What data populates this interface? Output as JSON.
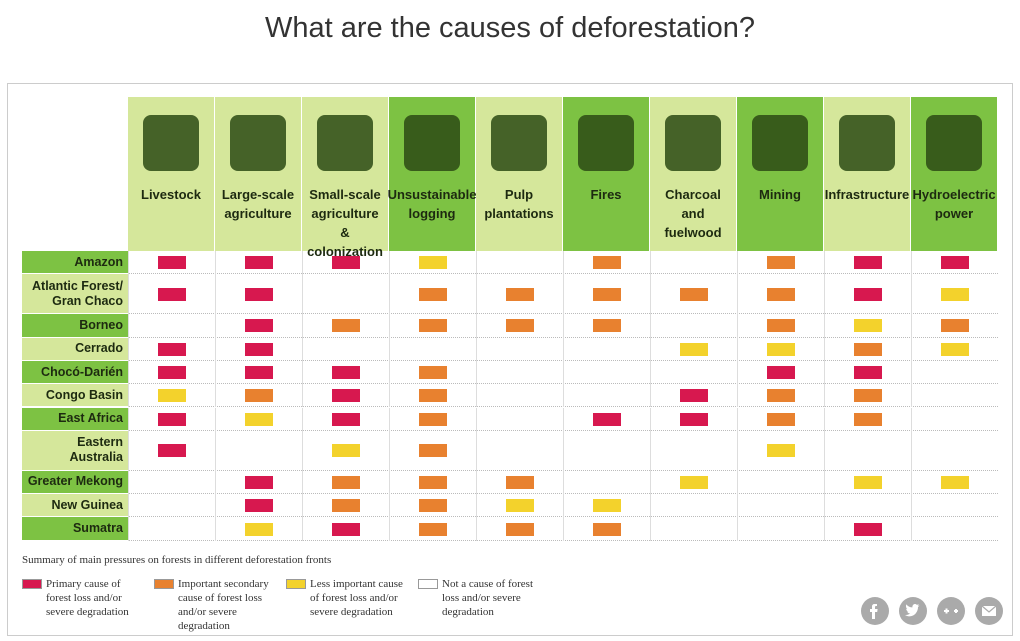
{
  "title": "What are the causes of deforestation?",
  "table": {
    "columns": [
      "Livestock",
      "Large-scale agriculture",
      "Small-scale agriculture & colonization",
      "Unsustainable logging",
      "Pulp plantations",
      "Fires",
      "Charcoal and fuelwood",
      "Mining",
      "Infrastructure",
      "Hydroelectric power"
    ],
    "column_shades": [
      "#d5e79b",
      "#d5e79b",
      "#d5e79b",
      "#7dc243",
      "#d5e79b",
      "#7dc243",
      "#d5e79b",
      "#7dc243",
      "#d5e79b",
      "#7dc243"
    ],
    "rows": [
      {
        "label": "Amazon",
        "cells": [
          0,
          0,
          0,
          2,
          3,
          1,
          3,
          1,
          0,
          0
        ]
      },
      {
        "label": "Atlantic Forest/ Gran Chaco",
        "cells": [
          0,
          0,
          3,
          1,
          1,
          1,
          1,
          1,
          0,
          2
        ]
      },
      {
        "label": "Borneo",
        "cells": [
          3,
          0,
          1,
          1,
          1,
          1,
          3,
          1,
          2,
          1
        ]
      },
      {
        "label": "Cerrado",
        "cells": [
          0,
          0,
          3,
          3,
          3,
          3,
          2,
          2,
          1,
          2
        ]
      },
      {
        "label": "Chocó-Darién",
        "cells": [
          0,
          0,
          0,
          1,
          3,
          3,
          3,
          0,
          0,
          3
        ]
      },
      {
        "label": "Congo Basin",
        "cells": [
          2,
          1,
          0,
          1,
          3,
          3,
          0,
          1,
          1,
          3
        ]
      },
      {
        "label": "East Africa",
        "cells": [
          0,
          2,
          0,
          1,
          3,
          0,
          0,
          1,
          1,
          3
        ]
      },
      {
        "label": "Eastern Australia",
        "cells": [
          0,
          3,
          2,
          1,
          3,
          3,
          3,
          2,
          3,
          3
        ]
      },
      {
        "label": "Greater Mekong",
        "cells": [
          3,
          0,
          1,
          1,
          1,
          3,
          2,
          3,
          2,
          2
        ]
      },
      {
        "label": "New Guinea",
        "cells": [
          3,
          0,
          1,
          1,
          2,
          2,
          3,
          3,
          3,
          3
        ]
      },
      {
        "label": "Sumatra",
        "cells": [
          3,
          2,
          0,
          1,
          1,
          1,
          3,
          3,
          0,
          3
        ]
      }
    ]
  },
  "summary": "Summary of main pressures on forests in different deforestation fronts",
  "legend": [
    {
      "label": "Primary cause of forest loss and/or severe degradation",
      "color": "#d7184f"
    },
    {
      "label": "Important secondary cause of forest loss and/or severe degradation",
      "color": "#e8812f"
    },
    {
      "label": "Less important cause of forest loss and/or severe degradation",
      "color": "#f3d22c"
    },
    {
      "label": "Not a cause of forest loss and/or severe degradation",
      "color": "#ffffff"
    }
  ]
}
